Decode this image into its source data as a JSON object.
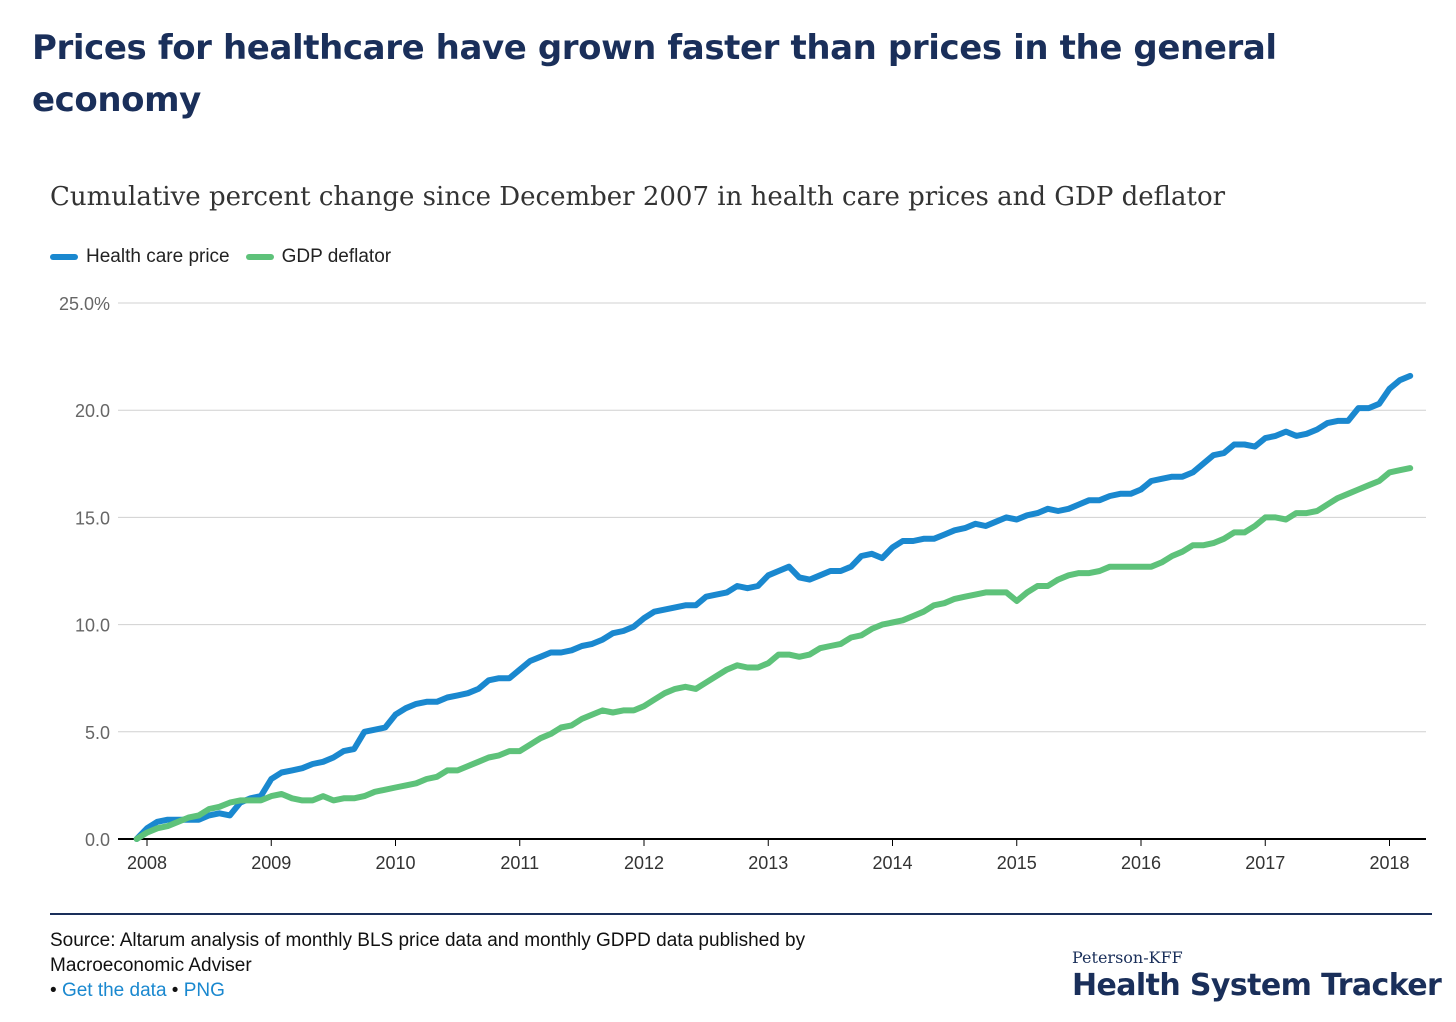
{
  "headline": "Prices for healthcare have grown faster than prices in the general economy",
  "chart_data": {
    "type": "line",
    "title": "Cumulative percent change since December 2007 in health care prices and GDP deflator",
    "xlabel": "",
    "ylabel": "",
    "xlim": [
      2007.917,
      2018.25
    ],
    "ylim": [
      0,
      25
    ],
    "y_ticks": [
      "0.0",
      "5.0",
      "10.0",
      "15.0",
      "20.0",
      "25.0%"
    ],
    "x_ticks": [
      "2008",
      "2009",
      "2010",
      "2011",
      "2012",
      "2013",
      "2014",
      "2015",
      "2016",
      "2017",
      "2018"
    ],
    "grid": true,
    "legend_position": "top-left",
    "series": [
      {
        "name": "Health care price",
        "color": "#1a88cf",
        "points": [
          [
            2007.917,
            0.0
          ],
          [
            2008.0,
            0.5
          ],
          [
            2008.083,
            0.8
          ],
          [
            2008.167,
            0.9
          ],
          [
            2008.25,
            0.9
          ],
          [
            2008.333,
            0.9
          ],
          [
            2008.417,
            0.9
          ],
          [
            2008.5,
            1.1
          ],
          [
            2008.583,
            1.2
          ],
          [
            2008.667,
            1.1
          ],
          [
            2008.75,
            1.7
          ],
          [
            2008.833,
            1.9
          ],
          [
            2008.917,
            2.0
          ],
          [
            2009.0,
            2.8
          ],
          [
            2009.083,
            3.1
          ],
          [
            2009.167,
            3.2
          ],
          [
            2009.25,
            3.3
          ],
          [
            2009.333,
            3.5
          ],
          [
            2009.417,
            3.6
          ],
          [
            2009.5,
            3.8
          ],
          [
            2009.583,
            4.1
          ],
          [
            2009.667,
            4.2
          ],
          [
            2009.75,
            5.0
          ],
          [
            2009.833,
            5.1
          ],
          [
            2009.917,
            5.2
          ],
          [
            2010.0,
            5.8
          ],
          [
            2010.083,
            6.1
          ],
          [
            2010.167,
            6.3
          ],
          [
            2010.25,
            6.4
          ],
          [
            2010.333,
            6.4
          ],
          [
            2010.417,
            6.6
          ],
          [
            2010.5,
            6.7
          ],
          [
            2010.583,
            6.8
          ],
          [
            2010.667,
            7.0
          ],
          [
            2010.75,
            7.4
          ],
          [
            2010.833,
            7.5
          ],
          [
            2010.917,
            7.5
          ],
          [
            2011.0,
            7.9
          ],
          [
            2011.083,
            8.3
          ],
          [
            2011.167,
            8.5
          ],
          [
            2011.25,
            8.7
          ],
          [
            2011.333,
            8.7
          ],
          [
            2011.417,
            8.8
          ],
          [
            2011.5,
            9.0
          ],
          [
            2011.583,
            9.1
          ],
          [
            2011.667,
            9.3
          ],
          [
            2011.75,
            9.6
          ],
          [
            2011.833,
            9.7
          ],
          [
            2011.917,
            9.9
          ],
          [
            2012.0,
            10.3
          ],
          [
            2012.083,
            10.6
          ],
          [
            2012.167,
            10.7
          ],
          [
            2012.25,
            10.8
          ],
          [
            2012.333,
            10.9
          ],
          [
            2012.417,
            10.9
          ],
          [
            2012.5,
            11.3
          ],
          [
            2012.583,
            11.4
          ],
          [
            2012.667,
            11.5
          ],
          [
            2012.75,
            11.8
          ],
          [
            2012.833,
            11.7
          ],
          [
            2012.917,
            11.8
          ],
          [
            2013.0,
            12.3
          ],
          [
            2013.083,
            12.5
          ],
          [
            2013.167,
            12.7
          ],
          [
            2013.25,
            12.2
          ],
          [
            2013.333,
            12.1
          ],
          [
            2013.417,
            12.3
          ],
          [
            2013.5,
            12.5
          ],
          [
            2013.583,
            12.5
          ],
          [
            2013.667,
            12.7
          ],
          [
            2013.75,
            13.2
          ],
          [
            2013.833,
            13.3
          ],
          [
            2013.917,
            13.1
          ],
          [
            2014.0,
            13.6
          ],
          [
            2014.083,
            13.9
          ],
          [
            2014.167,
            13.9
          ],
          [
            2014.25,
            14.0
          ],
          [
            2014.333,
            14.0
          ],
          [
            2014.417,
            14.2
          ],
          [
            2014.5,
            14.4
          ],
          [
            2014.583,
            14.5
          ],
          [
            2014.667,
            14.7
          ],
          [
            2014.75,
            14.6
          ],
          [
            2014.833,
            14.8
          ],
          [
            2014.917,
            15.0
          ],
          [
            2015.0,
            14.9
          ],
          [
            2015.083,
            15.1
          ],
          [
            2015.167,
            15.2
          ],
          [
            2015.25,
            15.4
          ],
          [
            2015.333,
            15.3
          ],
          [
            2015.417,
            15.4
          ],
          [
            2015.5,
            15.6
          ],
          [
            2015.583,
            15.8
          ],
          [
            2015.667,
            15.8
          ],
          [
            2015.75,
            16.0
          ],
          [
            2015.833,
            16.1
          ],
          [
            2015.917,
            16.1
          ],
          [
            2016.0,
            16.3
          ],
          [
            2016.083,
            16.7
          ],
          [
            2016.167,
            16.8
          ],
          [
            2016.25,
            16.9
          ],
          [
            2016.333,
            16.9
          ],
          [
            2016.417,
            17.1
          ],
          [
            2016.5,
            17.5
          ],
          [
            2016.583,
            17.9
          ],
          [
            2016.667,
            18.0
          ],
          [
            2016.75,
            18.4
          ],
          [
            2016.833,
            18.4
          ],
          [
            2016.917,
            18.3
          ],
          [
            2017.0,
            18.7
          ],
          [
            2017.083,
            18.8
          ],
          [
            2017.167,
            19.0
          ],
          [
            2017.25,
            18.8
          ],
          [
            2017.333,
            18.9
          ],
          [
            2017.417,
            19.1
          ],
          [
            2017.5,
            19.4
          ],
          [
            2017.583,
            19.5
          ],
          [
            2017.667,
            19.5
          ],
          [
            2017.75,
            20.1
          ],
          [
            2017.833,
            20.1
          ],
          [
            2017.917,
            20.3
          ],
          [
            2018.0,
            21.0
          ],
          [
            2018.083,
            21.4
          ],
          [
            2018.167,
            21.6
          ]
        ]
      },
      {
        "name": "GDP deflator",
        "color": "#5ec27a",
        "points": [
          [
            2007.917,
            0.0
          ],
          [
            2008.0,
            0.3
          ],
          [
            2008.083,
            0.5
          ],
          [
            2008.167,
            0.6
          ],
          [
            2008.25,
            0.8
          ],
          [
            2008.333,
            1.0
          ],
          [
            2008.417,
            1.1
          ],
          [
            2008.5,
            1.4
          ],
          [
            2008.583,
            1.5
          ],
          [
            2008.667,
            1.7
          ],
          [
            2008.75,
            1.8
          ],
          [
            2008.833,
            1.8
          ],
          [
            2008.917,
            1.8
          ],
          [
            2009.0,
            2.0
          ],
          [
            2009.083,
            2.1
          ],
          [
            2009.167,
            1.9
          ],
          [
            2009.25,
            1.8
          ],
          [
            2009.333,
            1.8
          ],
          [
            2009.417,
            2.0
          ],
          [
            2009.5,
            1.8
          ],
          [
            2009.583,
            1.9
          ],
          [
            2009.667,
            1.9
          ],
          [
            2009.75,
            2.0
          ],
          [
            2009.833,
            2.2
          ],
          [
            2009.917,
            2.3
          ],
          [
            2010.0,
            2.4
          ],
          [
            2010.083,
            2.5
          ],
          [
            2010.167,
            2.6
          ],
          [
            2010.25,
            2.8
          ],
          [
            2010.333,
            2.9
          ],
          [
            2010.417,
            3.2
          ],
          [
            2010.5,
            3.2
          ],
          [
            2010.583,
            3.4
          ],
          [
            2010.667,
            3.6
          ],
          [
            2010.75,
            3.8
          ],
          [
            2010.833,
            3.9
          ],
          [
            2010.917,
            4.1
          ],
          [
            2011.0,
            4.1
          ],
          [
            2011.083,
            4.4
          ],
          [
            2011.167,
            4.7
          ],
          [
            2011.25,
            4.9
          ],
          [
            2011.333,
            5.2
          ],
          [
            2011.417,
            5.3
          ],
          [
            2011.5,
            5.6
          ],
          [
            2011.583,
            5.8
          ],
          [
            2011.667,
            6.0
          ],
          [
            2011.75,
            5.9
          ],
          [
            2011.833,
            6.0
          ],
          [
            2011.917,
            6.0
          ],
          [
            2012.0,
            6.2
          ],
          [
            2012.083,
            6.5
          ],
          [
            2012.167,
            6.8
          ],
          [
            2012.25,
            7.0
          ],
          [
            2012.333,
            7.1
          ],
          [
            2012.417,
            7.0
          ],
          [
            2012.5,
            7.3
          ],
          [
            2012.583,
            7.6
          ],
          [
            2012.667,
            7.9
          ],
          [
            2012.75,
            8.1
          ],
          [
            2012.833,
            8.0
          ],
          [
            2012.917,
            8.0
          ],
          [
            2013.0,
            8.2
          ],
          [
            2013.083,
            8.6
          ],
          [
            2013.167,
            8.6
          ],
          [
            2013.25,
            8.5
          ],
          [
            2013.333,
            8.6
          ],
          [
            2013.417,
            8.9
          ],
          [
            2013.5,
            9.0
          ],
          [
            2013.583,
            9.1
          ],
          [
            2013.667,
            9.4
          ],
          [
            2013.75,
            9.5
          ],
          [
            2013.833,
            9.8
          ],
          [
            2013.917,
            10.0
          ],
          [
            2014.0,
            10.1
          ],
          [
            2014.083,
            10.2
          ],
          [
            2014.167,
            10.4
          ],
          [
            2014.25,
            10.6
          ],
          [
            2014.333,
            10.9
          ],
          [
            2014.417,
            11.0
          ],
          [
            2014.5,
            11.2
          ],
          [
            2014.583,
            11.3
          ],
          [
            2014.667,
            11.4
          ],
          [
            2014.75,
            11.5
          ],
          [
            2014.833,
            11.5
          ],
          [
            2014.917,
            11.5
          ],
          [
            2015.0,
            11.1
          ],
          [
            2015.083,
            11.5
          ],
          [
            2015.167,
            11.8
          ],
          [
            2015.25,
            11.8
          ],
          [
            2015.333,
            12.1
          ],
          [
            2015.417,
            12.3
          ],
          [
            2015.5,
            12.4
          ],
          [
            2015.583,
            12.4
          ],
          [
            2015.667,
            12.5
          ],
          [
            2015.75,
            12.7
          ],
          [
            2015.833,
            12.7
          ],
          [
            2015.917,
            12.7
          ],
          [
            2016.0,
            12.7
          ],
          [
            2016.083,
            12.7
          ],
          [
            2016.167,
            12.9
          ],
          [
            2016.25,
            13.2
          ],
          [
            2016.333,
            13.4
          ],
          [
            2016.417,
            13.7
          ],
          [
            2016.5,
            13.7
          ],
          [
            2016.583,
            13.8
          ],
          [
            2016.667,
            14.0
          ],
          [
            2016.75,
            14.3
          ],
          [
            2016.833,
            14.3
          ],
          [
            2016.917,
            14.6
          ],
          [
            2017.0,
            15.0
          ],
          [
            2017.083,
            15.0
          ],
          [
            2017.167,
            14.9
          ],
          [
            2017.25,
            15.2
          ],
          [
            2017.333,
            15.2
          ],
          [
            2017.417,
            15.3
          ],
          [
            2017.5,
            15.6
          ],
          [
            2017.583,
            15.9
          ],
          [
            2017.667,
            16.1
          ],
          [
            2017.75,
            16.3
          ],
          [
            2017.833,
            16.5
          ],
          [
            2017.917,
            16.7
          ],
          [
            2018.0,
            17.1
          ],
          [
            2018.083,
            17.2
          ],
          [
            2018.167,
            17.3
          ]
        ]
      }
    ]
  },
  "footer": {
    "source": "Source: Altarum analysis of monthly BLS price data and monthly GDPD data published by Macroeconomic Adviser",
    "bullet": "•",
    "link_data": "Get the data",
    "link_png": "PNG"
  },
  "brand": {
    "top": "Peterson-KFF",
    "main": "Health System Tracker"
  }
}
